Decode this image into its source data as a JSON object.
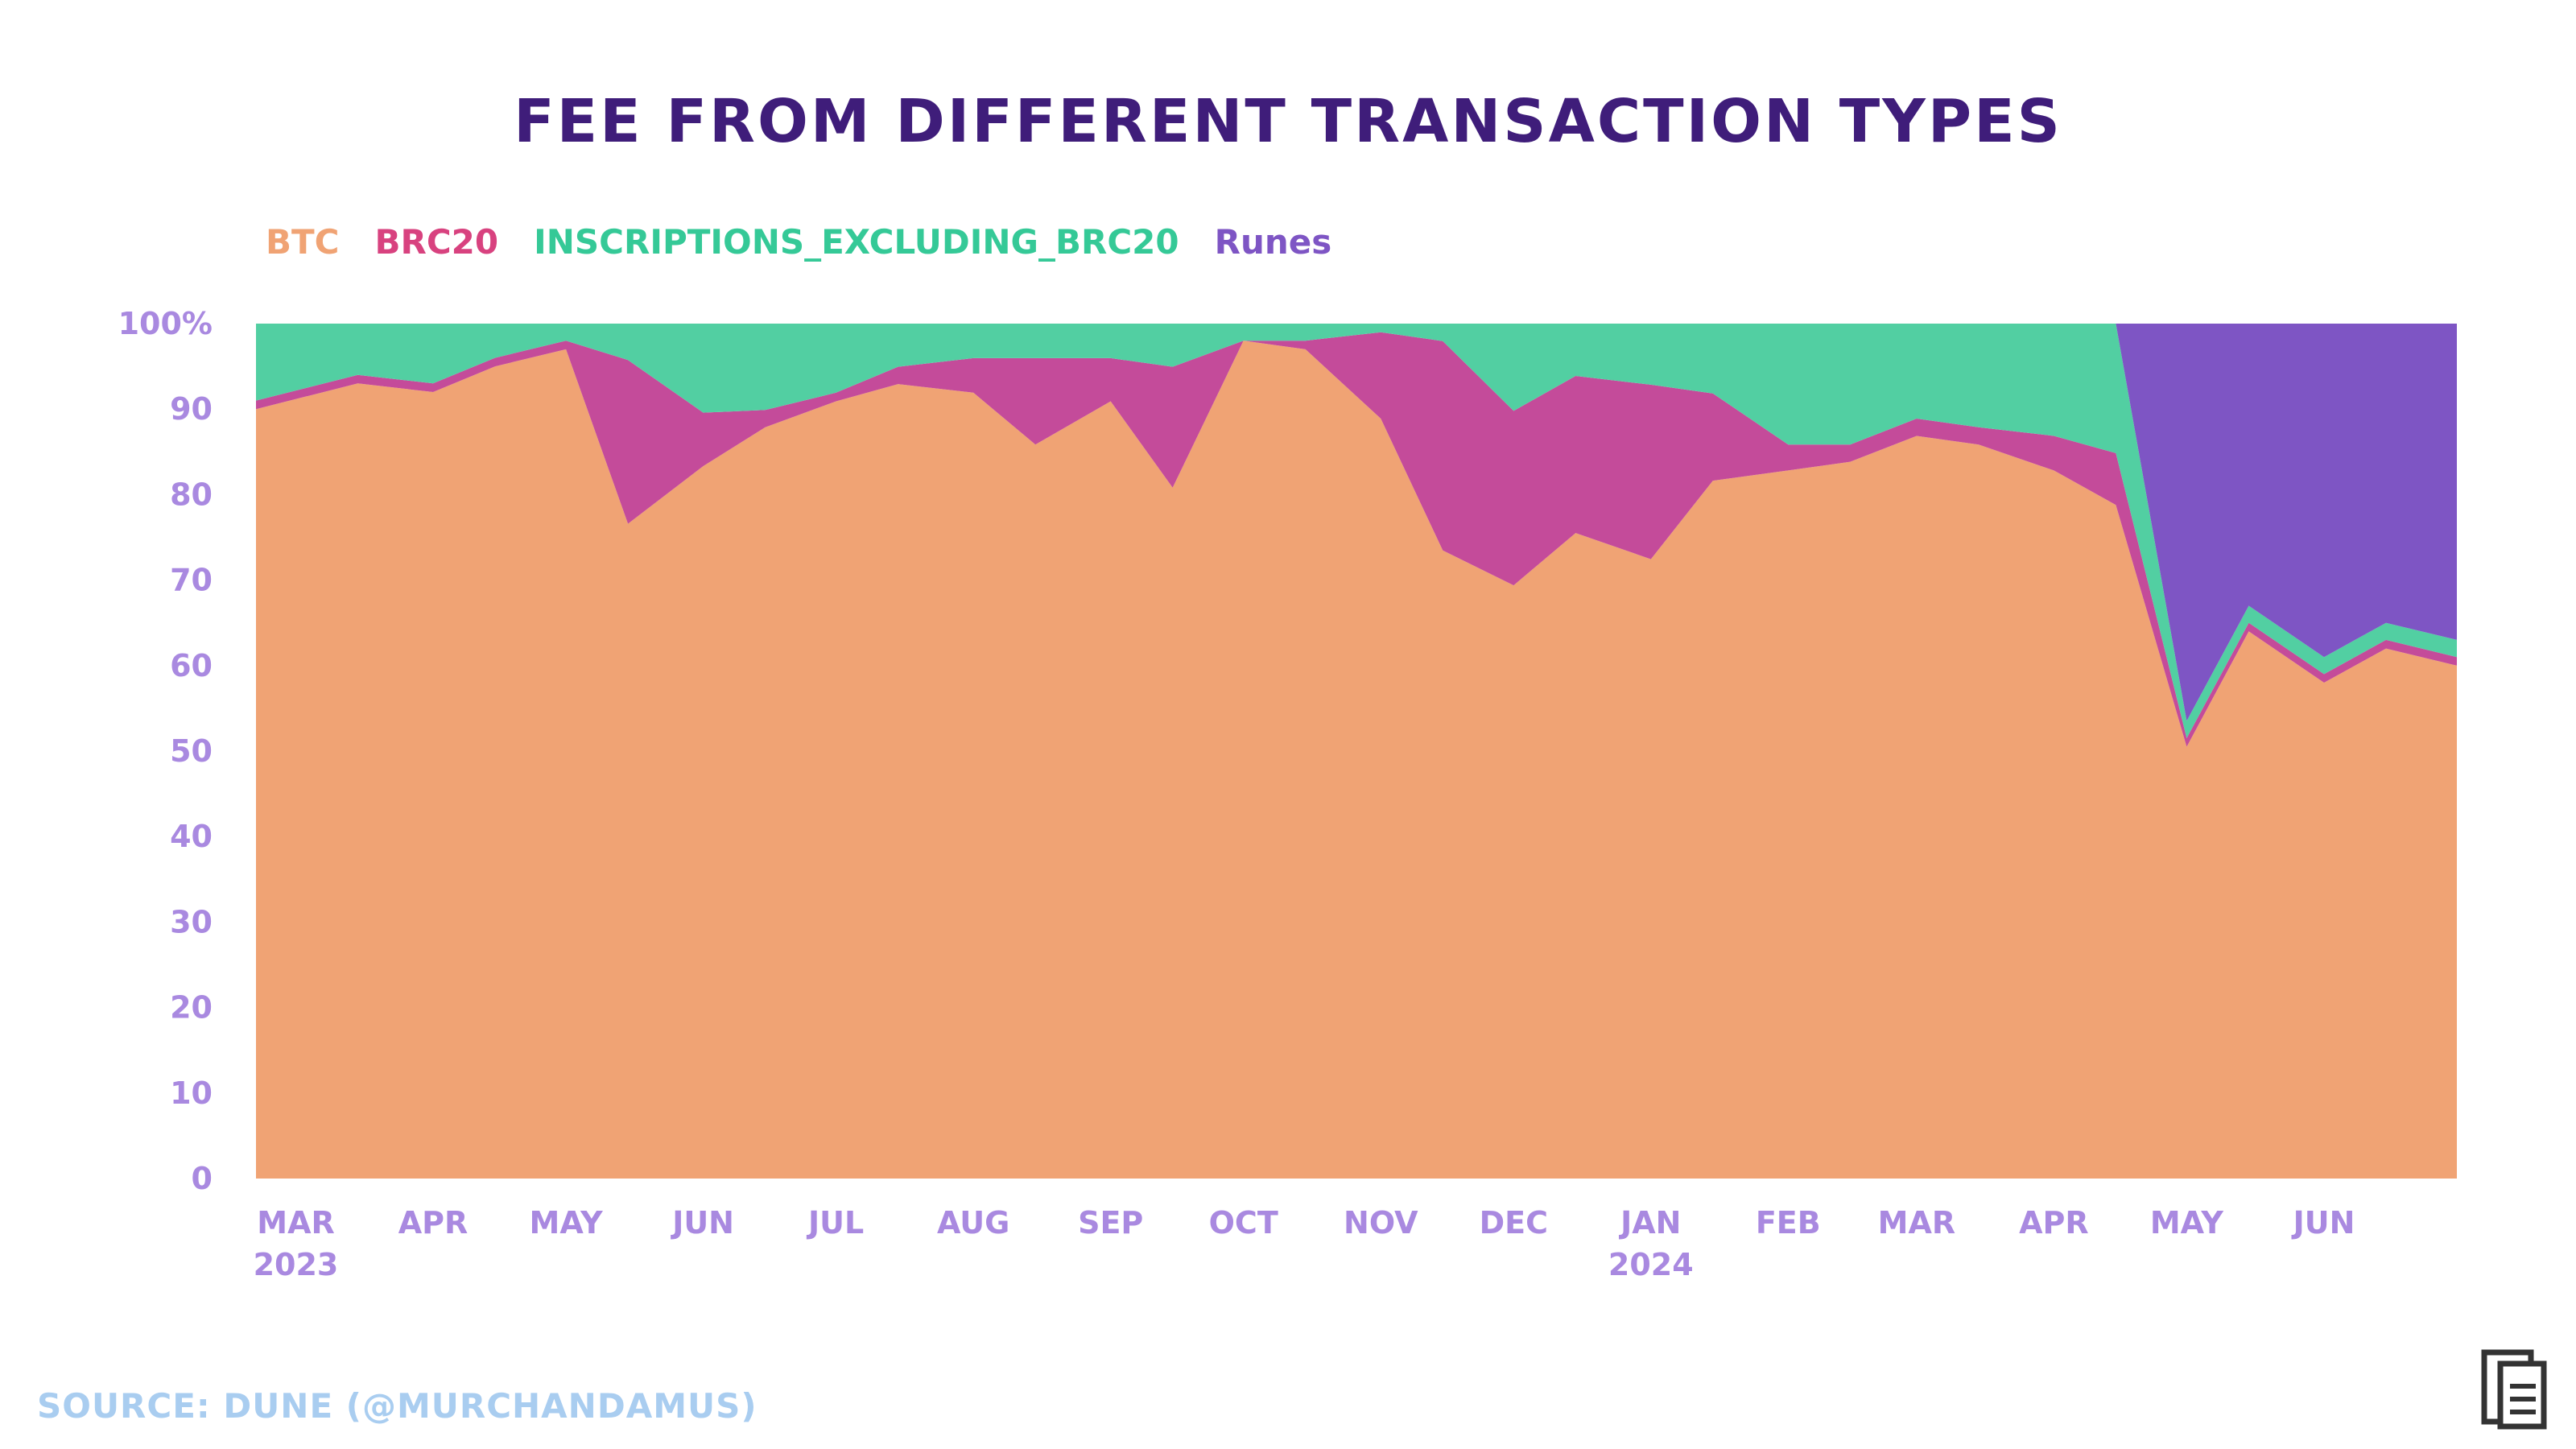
{
  "source": "SOURCE: DUNE (@MURCHANDAMUS)",
  "colors": {
    "btc": "#f0a374",
    "brc20": "#c44b9a",
    "inscriptions": "#52cfa2",
    "runes": "#7e55c4",
    "title": "#3f1d7a",
    "axis": "#a989e0",
    "source": "#a9cdf0"
  },
  "logo_icon": "book-logo-icon",
  "chart_data": {
    "type": "area",
    "stacked_percent": true,
    "title": "FEE FROM DIFFERENT TRANSACTION TYPES",
    "legend_position": "top-left",
    "grid": false,
    "ylim": [
      0,
      100
    ],
    "y_ticks": [
      "0",
      "10",
      "20",
      "30",
      "40",
      "50",
      "60",
      "70",
      "80",
      "90",
      "100%"
    ],
    "x_ticks": [
      {
        "label": "MAR",
        "year": "2023",
        "date": "2023-03"
      },
      {
        "label": "APR",
        "year": "",
        "date": "2023-04"
      },
      {
        "label": "MAY",
        "year": "",
        "date": "2023-05"
      },
      {
        "label": "JUN",
        "year": "",
        "date": "2023-06"
      },
      {
        "label": "JUL",
        "year": "",
        "date": "2023-07"
      },
      {
        "label": "AUG",
        "year": "",
        "date": "2023-08"
      },
      {
        "label": "SEP",
        "year": "",
        "date": "2023-09"
      },
      {
        "label": "OCT",
        "year": "",
        "date": "2023-10"
      },
      {
        "label": "NOV",
        "year": "",
        "date": "2023-11"
      },
      {
        "label": "DEC",
        "year": "",
        "date": "2023-12"
      },
      {
        "label": "JAN",
        "year": "2024",
        "date": "2024-01"
      },
      {
        "label": "FEB",
        "year": "",
        "date": "2024-02"
      },
      {
        "label": "MAR",
        "year": "",
        "date": "2024-03"
      },
      {
        "label": "APR",
        "year": "",
        "date": "2024-04"
      },
      {
        "label": "MAY",
        "year": "",
        "date": "2024-05"
      },
      {
        "label": "JUN",
        "year": "",
        "date": "2024-06"
      }
    ],
    "x": [
      "2023-03-01",
      "2023-03-15",
      "2023-04-01",
      "2023-04-15",
      "2023-05-01",
      "2023-05-15",
      "2023-06-01",
      "2023-06-15",
      "2023-07-01",
      "2023-07-15",
      "2023-08-01",
      "2023-08-15",
      "2023-09-01",
      "2023-09-15",
      "2023-10-01",
      "2023-10-15",
      "2023-11-01",
      "2023-11-15",
      "2023-12-01",
      "2023-12-15",
      "2024-01-01",
      "2024-01-15",
      "2024-02-01",
      "2024-02-15",
      "2024-03-01",
      "2024-03-15",
      "2024-04-01",
      "2024-04-15",
      "2024-05-01",
      "2024-05-15",
      "2024-06-01",
      "2024-06-15",
      "2024-06-30"
    ],
    "series": [
      {
        "name": "BTC",
        "color": "#f0a374",
        "values": [
          90,
          93,
          92,
          95,
          97,
          72,
          80,
          87,
          90,
          92,
          91,
          85,
          90,
          80,
          98,
          97,
          88,
          72,
          68,
          74,
          71,
          80,
          82,
          83,
          86,
          85,
          82,
          78,
          50,
          64,
          58,
          62,
          60
        ]
      },
      {
        "name": "BRC20",
        "color": "#c44b9a",
        "values": [
          1,
          1,
          1,
          1,
          1,
          18,
          6,
          2,
          1,
          2,
          4,
          10,
          5,
          14,
          0,
          1,
          10,
          24,
          20,
          18,
          20,
          10,
          3,
          2,
          2,
          2,
          4,
          6,
          1,
          1,
          1,
          1,
          1
        ]
      },
      {
        "name": "INSCRIPTIONS_EXCLUDING_BRC20",
        "color": "#52cfa2",
        "values": [
          9,
          6,
          7,
          4,
          2,
          4,
          10,
          10,
          8,
          5,
          4,
          4,
          4,
          5,
          2,
          2,
          1,
          2,
          10,
          6,
          7,
          8,
          14,
          14,
          11,
          12,
          13,
          15,
          2,
          2,
          2,
          2,
          2
        ]
      },
      {
        "name": "Runes",
        "color": "#7e55c4",
        "values": [
          0,
          0,
          0,
          0,
          0,
          0,
          0,
          0,
          0,
          0,
          0,
          0,
          0,
          0,
          0,
          0,
          0,
          0,
          0,
          0,
          0,
          0,
          0,
          0,
          0,
          0,
          0,
          0,
          46,
          33,
          39,
          35,
          37
        ]
      }
    ]
  }
}
